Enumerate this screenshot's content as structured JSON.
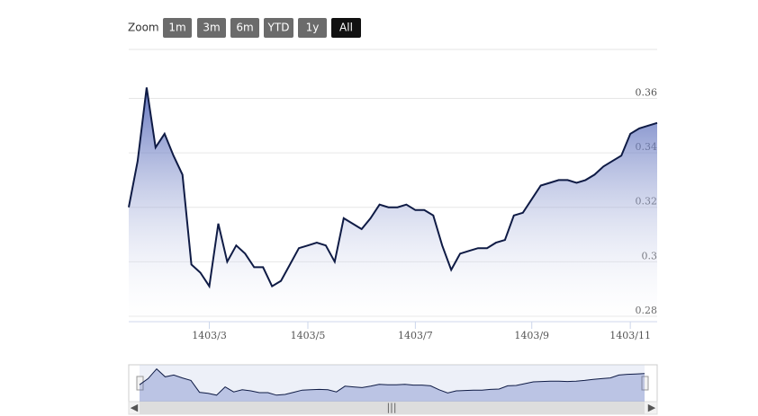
{
  "chart_data": {
    "type": "area",
    "range_selector": {
      "label": "Zoom",
      "buttons": [
        "1m",
        "3m",
        "6m",
        "YTD",
        "1y",
        "All"
      ],
      "selected": 5
    },
    "categories": [
      null,
      null,
      null,
      null,
      null,
      null,
      null,
      null,
      null,
      "1403/3",
      null,
      null,
      null,
      null,
      null,
      null,
      null,
      null,
      null,
      null,
      "1403/5",
      null,
      null,
      null,
      null,
      null,
      null,
      null,
      null,
      null,
      null,
      null,
      "1403/7",
      null,
      null,
      null,
      null,
      null,
      null,
      null,
      null,
      null,
      null,
      null,
      null,
      "1403/9",
      null,
      null,
      null,
      null,
      null,
      null,
      null,
      null,
      null,
      null,
      "1403/11",
      null,
      null,
      null
    ],
    "values": [
      0.32,
      0.337,
      0.364,
      0.342,
      0.347,
      0.339,
      0.332,
      0.299,
      0.296,
      0.291,
      0.314,
      0.3,
      0.306,
      0.303,
      0.298,
      0.298,
      0.291,
      0.293,
      0.299,
      0.305,
      0.306,
      0.307,
      0.306,
      0.3,
      0.316,
      0.314,
      0.312,
      0.316,
      0.321,
      0.32,
      0.32,
      0.321,
      0.319,
      0.319,
      0.317,
      0.306,
      0.297,
      0.303,
      0.304,
      0.305,
      0.305,
      0.307,
      0.308,
      0.317,
      0.318,
      0.323,
      0.328,
      0.329,
      0.33,
      0.33,
      0.329,
      0.33,
      0.332,
      0.335,
      0.337,
      0.339,
      0.347,
      0.349,
      0.35,
      0.351
    ],
    "color": "#0f1b45",
    "fill_color": "#4a5fb5",
    "ylim": [
      0.278,
      0.378
    ],
    "yticks": [
      0.28,
      0.3,
      0.32,
      0.34,
      0.36
    ],
    "grid": true
  }
}
